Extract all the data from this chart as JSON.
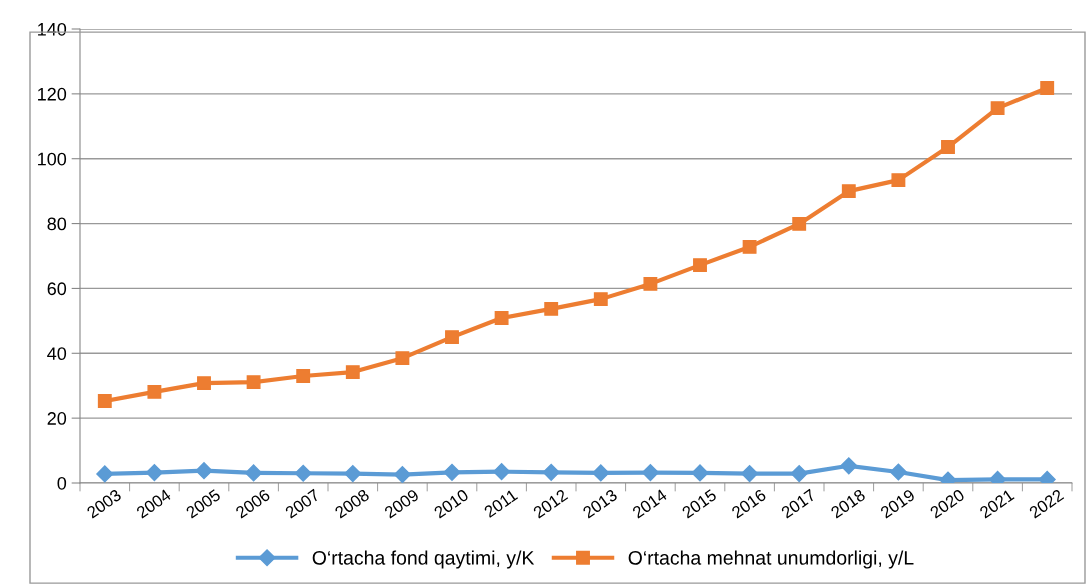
{
  "chart_data": {
    "type": "line",
    "categories": [
      "2003",
      "2004",
      "2005",
      "2006",
      "2007",
      "2008",
      "2009",
      "2010",
      "2011",
      "2012",
      "2013",
      "2014",
      "2015",
      "2016",
      "2017",
      "2018",
      "2019",
      "2020",
      "2021",
      "2022"
    ],
    "series": [
      {
        "name": "O‘rtacha fond qaytimi, y/K",
        "color": "#5b9bd5",
        "marker": "diamond",
        "values": [
          2.8,
          3.2,
          3.8,
          3.1,
          3.0,
          2.9,
          2.6,
          3.3,
          3.5,
          3.3,
          3.1,
          3.2,
          3.1,
          2.9,
          2.9,
          5.3,
          3.4,
          0.9,
          1.1,
          1.1
        ]
      },
      {
        "name": "O‘rtacha mehnat unumdorligi, y/L",
        "color": "#ed7d31",
        "marker": "square",
        "values": [
          25.3,
          28.1,
          30.8,
          31.1,
          33.0,
          34.2,
          38.5,
          45.0,
          50.9,
          53.7,
          56.7,
          61.4,
          67.2,
          72.8,
          79.9,
          90.0,
          93.4,
          103.6,
          115.6,
          121.8
        ]
      }
    ],
    "ylim": [
      0,
      140
    ],
    "yticks": [
      0,
      20,
      40,
      60,
      80,
      100,
      120,
      140
    ],
    "grid": "y",
    "legend": "bottom",
    "line_style": "solid"
  }
}
